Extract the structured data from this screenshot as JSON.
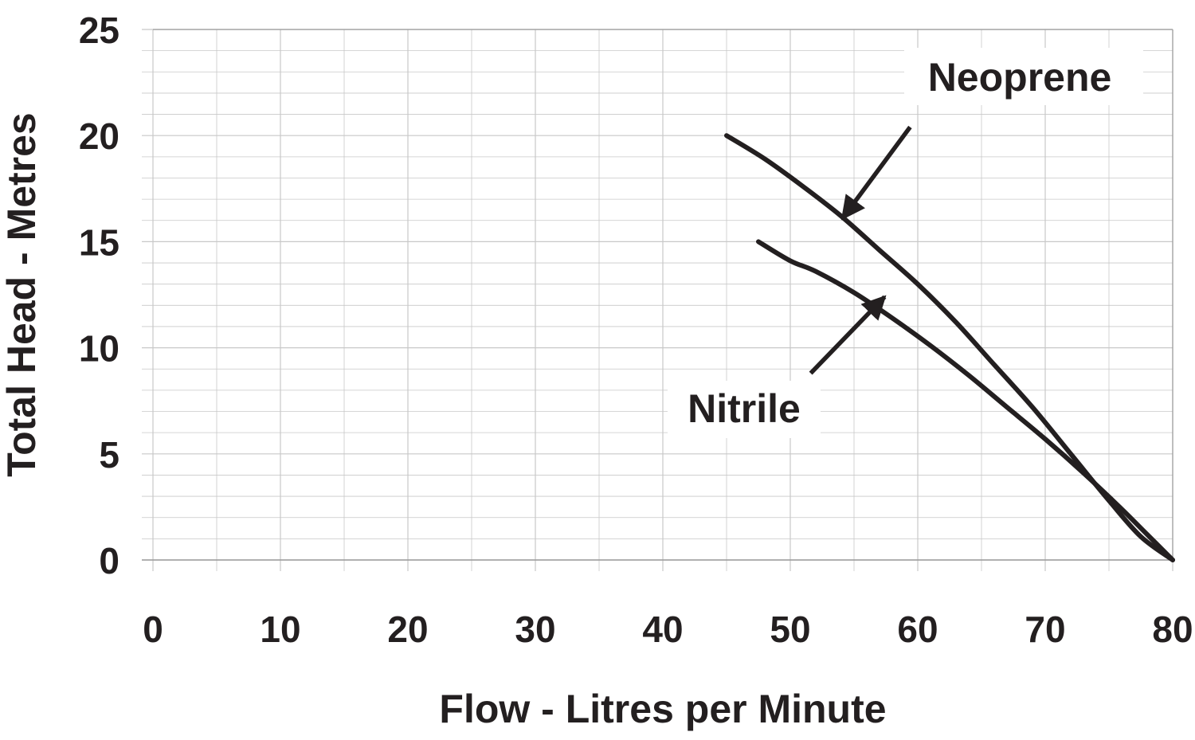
{
  "chart_data": {
    "type": "line",
    "xlabel": "Flow - Litres per Minute",
    "ylabel": "Total Head - Metres",
    "xlim": [
      0,
      80
    ],
    "ylim": [
      0,
      25
    ],
    "x_ticks": [
      "0",
      "10",
      "20",
      "30",
      "40",
      "50",
      "60",
      "70",
      "80"
    ],
    "y_ticks": [
      "0",
      "5",
      "10",
      "15",
      "20",
      "25"
    ],
    "grid": true,
    "series": [
      {
        "name": "Neoprene",
        "points": [
          [
            45,
            20
          ],
          [
            48,
            18.9
          ],
          [
            51,
            17.6
          ],
          [
            54,
            16.2
          ],
          [
            57,
            14.6
          ],
          [
            60,
            13
          ],
          [
            63,
            11.2
          ],
          [
            66,
            9.2
          ],
          [
            69,
            7.2
          ],
          [
            72,
            5
          ],
          [
            75,
            2.8
          ],
          [
            77.5,
            1.1
          ],
          [
            80,
            0
          ]
        ]
      },
      {
        "name": "Nitrile",
        "points": [
          [
            47.5,
            15
          ],
          [
            50,
            14.1
          ],
          [
            52,
            13.6
          ],
          [
            55,
            12.6
          ],
          [
            58,
            11.4
          ],
          [
            61,
            10.1
          ],
          [
            64,
            8.7
          ],
          [
            67,
            7.2
          ],
          [
            70,
            5.7
          ],
          [
            73,
            4.1
          ],
          [
            76,
            2.4
          ],
          [
            78,
            1.2
          ],
          [
            80,
            0
          ]
        ]
      }
    ],
    "annotations": [
      {
        "text": "Neoprene",
        "series": "Neoprene",
        "arrow_from": [
          59.4,
          20.4
        ],
        "arrow_to": [
          54.1,
          16.1
        ]
      },
      {
        "text": "Nitrile",
        "series": "Nitrile",
        "arrow_from": [
          51.6,
          8.8
        ],
        "arrow_to": [
          57.4,
          12.4
        ]
      }
    ],
    "line_color": "#231f20",
    "grid_color": "#c8c8c8"
  }
}
